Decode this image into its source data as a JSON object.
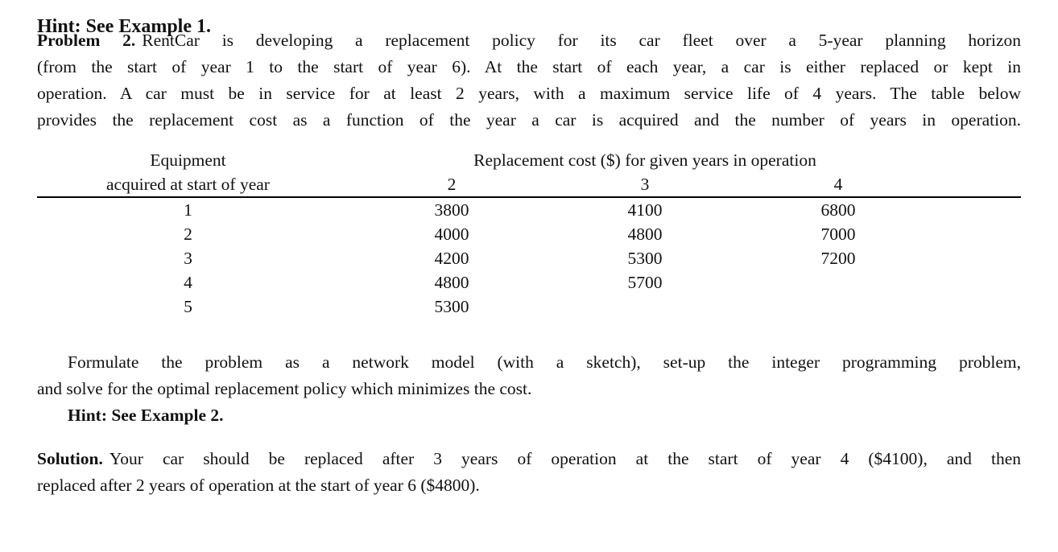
{
  "clipped_line": {
    "text": "Hint: See Example 1."
  },
  "problem": {
    "label": "Problem 2.",
    "line1_rest": "RentCar is developing a replacement policy for its car fleet over a 5-year planning horizon",
    "line2": "(from the start of year 1 to the start of year 6). At the start of each year, a car is either replaced or kept in",
    "line3": "operation. A car must be in service for at least 2 years, with a maximum service life of 4 years. The table below",
    "line4": "provides the replacement cost as a function of the year a car is acquired and the number of years in operation."
  },
  "table": {
    "col1_header_line1": "Equipment",
    "col1_header_line2": "acquired at start of year",
    "group_header": "Replacement cost ($) for given years in operation",
    "year_columns": [
      "2",
      "3",
      "4"
    ],
    "rows": [
      {
        "acquired_year": "1",
        "cost_2yr": "3800",
        "cost_3yr": "4100",
        "cost_4yr": "6800"
      },
      {
        "acquired_year": "2",
        "cost_2yr": "4000",
        "cost_3yr": "4800",
        "cost_4yr": "7000"
      },
      {
        "acquired_year": "3",
        "cost_2yr": "4200",
        "cost_3yr": "5300",
        "cost_4yr": "7200"
      },
      {
        "acquired_year": "4",
        "cost_2yr": "4800",
        "cost_3yr": "5700",
        "cost_4yr": ""
      },
      {
        "acquired_year": "5",
        "cost_2yr": "5300",
        "cost_3yr": "",
        "cost_4yr": ""
      }
    ]
  },
  "task": {
    "line1": "Formulate the problem as a network model (with a sketch), set-up the integer programming problem,",
    "line2": "and solve for the optimal replacement policy which minimizes the cost.",
    "hint": "Hint: See Example 2."
  },
  "solution": {
    "label": "Solution.",
    "line1_rest": "Your car should be replaced after 3 years of operation at the start of year 4 ($4100), and then",
    "line2": "replaced after 2 years of operation at the start of year 6 ($4800)."
  },
  "colors": {
    "background": "#ffffff",
    "text": "#111111",
    "rule": "#000000"
  }
}
